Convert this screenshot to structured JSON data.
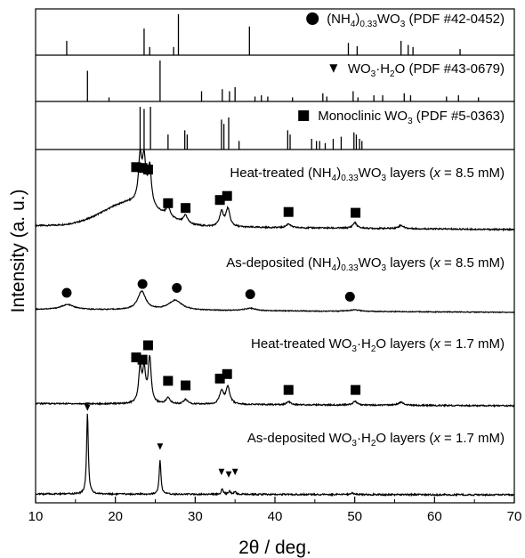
{
  "chart_data": {
    "type": "line",
    "xlabel": "2θ / deg.",
    "ylabel": "Intensity (a. u.)",
    "xlim": [
      10,
      70
    ],
    "xticks": [
      10,
      20,
      30,
      40,
      50,
      60,
      70
    ],
    "references": [
      {
        "label_parts": [
          "(NH",
          "4",
          ")",
          "0.33",
          "WO",
          "3",
          " (PDF #42-0452)"
        ],
        "label_subs": [
          false,
          true,
          false,
          true,
          false,
          true,
          false
        ],
        "marker": "circle",
        "peaks": [
          {
            "x": 13.9,
            "h": 0.35
          },
          {
            "x": 23.6,
            "h": 0.65
          },
          {
            "x": 24.3,
            "h": 0.2
          },
          {
            "x": 27.3,
            "h": 0.2
          },
          {
            "x": 27.9,
            "h": 1.0
          },
          {
            "x": 36.8,
            "h": 0.7
          },
          {
            "x": 49.2,
            "h": 0.3
          },
          {
            "x": 50.3,
            "h": 0.22
          },
          {
            "x": 55.8,
            "h": 0.35
          },
          {
            "x": 56.7,
            "h": 0.25
          },
          {
            "x": 57.3,
            "h": 0.2
          },
          {
            "x": 63.2,
            "h": 0.15
          }
        ]
      },
      {
        "label_parts": [
          "WO",
          "3",
          "·H",
          "2",
          "O (PDF #43-0679)"
        ],
        "label_subs": [
          false,
          true,
          false,
          true,
          false
        ],
        "marker": "triangle-down",
        "peaks": [
          {
            "x": 16.5,
            "h": 0.75
          },
          {
            "x": 19.2,
            "h": 0.1
          },
          {
            "x": 25.6,
            "h": 1.0
          },
          {
            "x": 30.8,
            "h": 0.25
          },
          {
            "x": 33.4,
            "h": 0.3
          },
          {
            "x": 34.3,
            "h": 0.25
          },
          {
            "x": 35.0,
            "h": 0.35
          },
          {
            "x": 37.5,
            "h": 0.12
          },
          {
            "x": 38.3,
            "h": 0.15
          },
          {
            "x": 39.1,
            "h": 0.12
          },
          {
            "x": 42.2,
            "h": 0.1
          },
          {
            "x": 46.0,
            "h": 0.2
          },
          {
            "x": 46.5,
            "h": 0.12
          },
          {
            "x": 49.8,
            "h": 0.25
          },
          {
            "x": 50.4,
            "h": 0.1
          },
          {
            "x": 52.4,
            "h": 0.15
          },
          {
            "x": 53.5,
            "h": 0.15
          },
          {
            "x": 56.2,
            "h": 0.2
          },
          {
            "x": 57.0,
            "h": 0.15
          },
          {
            "x": 61.5,
            "h": 0.12
          },
          {
            "x": 63.0,
            "h": 0.15
          },
          {
            "x": 65.5,
            "h": 0.1
          }
        ]
      },
      {
        "label_parts": [
          "Monoclinic WO",
          "3",
          " (PDF #5-0363)"
        ],
        "label_subs": [
          false,
          true,
          false
        ],
        "marker": "square",
        "peaks": [
          {
            "x": 23.1,
            "h": 1.0
          },
          {
            "x": 23.6,
            "h": 0.95
          },
          {
            "x": 24.4,
            "h": 1.0
          },
          {
            "x": 26.6,
            "h": 0.35
          },
          {
            "x": 28.7,
            "h": 0.45
          },
          {
            "x": 29.0,
            "h": 0.35
          },
          {
            "x": 33.3,
            "h": 0.7
          },
          {
            "x": 33.6,
            "h": 0.6
          },
          {
            "x": 34.2,
            "h": 0.75
          },
          {
            "x": 35.5,
            "h": 0.2
          },
          {
            "x": 41.6,
            "h": 0.45
          },
          {
            "x": 41.9,
            "h": 0.35
          },
          {
            "x": 44.6,
            "h": 0.25
          },
          {
            "x": 45.2,
            "h": 0.2
          },
          {
            "x": 45.6,
            "h": 0.2
          },
          {
            "x": 46.3,
            "h": 0.15
          },
          {
            "x": 47.3,
            "h": 0.25
          },
          {
            "x": 48.3,
            "h": 0.3
          },
          {
            "x": 49.9,
            "h": 0.4
          },
          {
            "x": 50.2,
            "h": 0.35
          },
          {
            "x": 50.6,
            "h": 0.25
          },
          {
            "x": 50.9,
            "h": 0.2
          }
        ]
      }
    ],
    "patterns": [
      {
        "label_parts": [
          "Heat-treated (NH",
          "4",
          ")",
          "0.33",
          "WO",
          "3",
          " layers (",
          "x",
          " = 8.5 mM)"
        ],
        "label_subs": [
          false,
          true,
          false,
          true,
          false,
          true,
          false,
          false,
          false
        ],
        "label_ital": [
          false,
          false,
          false,
          false,
          false,
          false,
          false,
          true,
          false
        ],
        "marker": "square",
        "bg_start": 0.05,
        "bg_end": 0.0,
        "humps": [
          {
            "x": 22.0,
            "h": 0.3,
            "w": 3.5
          }
        ],
        "peaks": [
          {
            "x": 23.1,
            "h": 0.55,
            "w": 0.25
          },
          {
            "x": 23.6,
            "h": 0.52,
            "w": 0.25
          },
          {
            "x": 24.3,
            "h": 0.48,
            "w": 0.25
          },
          {
            "x": 26.6,
            "h": 0.12,
            "w": 0.3
          },
          {
            "x": 28.8,
            "h": 0.1,
            "w": 0.3
          },
          {
            "x": 33.3,
            "h": 0.18,
            "w": 0.3
          },
          {
            "x": 34.1,
            "h": 0.22,
            "w": 0.3
          },
          {
            "x": 41.7,
            "h": 0.05,
            "w": 0.3
          },
          {
            "x": 50.0,
            "h": 0.07,
            "w": 0.3
          },
          {
            "x": 55.8,
            "h": 0.04,
            "w": 0.4
          }
        ],
        "markers_x": [
          22.6,
          23.4,
          24.1,
          26.6,
          28.8,
          33.1,
          34.0,
          41.7,
          50.1
        ],
        "markers_y": [
          0.78,
          0.77,
          0.75,
          0.33,
          0.27,
          0.37,
          0.42,
          0.22,
          0.21
        ]
      },
      {
        "label_parts": [
          "As-deposited (NH",
          "4",
          ")",
          "0.33",
          "WO",
          "3",
          " layers (",
          "x",
          " = 8.5 mM)"
        ],
        "label_subs": [
          false,
          true,
          false,
          true,
          false,
          true,
          false,
          false,
          false
        ],
        "label_ital": [
          false,
          false,
          false,
          false,
          false,
          false,
          false,
          true,
          false
        ],
        "marker": "circle",
        "bg_start": 0.06,
        "bg_end": 0.0,
        "humps": [],
        "peaks": [
          {
            "x": 14.0,
            "h": 0.1,
            "w": 1.0
          },
          {
            "x": 23.3,
            "h": 0.38,
            "w": 0.6
          },
          {
            "x": 27.5,
            "h": 0.2,
            "w": 1.0
          },
          {
            "x": 36.9,
            "h": 0.05,
            "w": 0.8
          },
          {
            "x": 50.0,
            "h": 0.03,
            "w": 0.8
          }
        ],
        "markers_x": [
          13.9,
          23.4,
          27.7,
          36.9,
          49.4
        ],
        "markers_y": [
          0.4,
          0.58,
          0.5,
          0.37,
          0.32
        ]
      },
      {
        "label_parts": [
          "Heat-treated WO",
          "3",
          "·H",
          "2",
          "O layers (",
          "x",
          " = 1.7 mM)"
        ],
        "label_subs": [
          false,
          true,
          false,
          true,
          false,
          false,
          false
        ],
        "label_ital": [
          false,
          false,
          false,
          false,
          false,
          true,
          false
        ],
        "marker": "square",
        "bg_start": 0.03,
        "bg_end": 0.0,
        "humps": [],
        "peaks": [
          {
            "x": 23.1,
            "h": 0.45,
            "w": 0.22
          },
          {
            "x": 23.6,
            "h": 0.42,
            "w": 0.22
          },
          {
            "x": 24.3,
            "h": 0.6,
            "w": 0.22
          },
          {
            "x": 26.6,
            "h": 0.08,
            "w": 0.3
          },
          {
            "x": 28.8,
            "h": 0.06,
            "w": 0.3
          },
          {
            "x": 33.3,
            "h": 0.17,
            "w": 0.3
          },
          {
            "x": 34.1,
            "h": 0.22,
            "w": 0.3
          },
          {
            "x": 41.7,
            "h": 0.04,
            "w": 0.3
          },
          {
            "x": 50.0,
            "h": 0.05,
            "w": 0.3
          },
          {
            "x": 55.8,
            "h": 0.04,
            "w": 0.4
          }
        ],
        "markers_x": [
          22.6,
          23.4,
          24.1,
          26.6,
          28.8,
          33.1,
          34.0,
          41.7,
          50.1
        ],
        "markers_y": [
          0.64,
          0.61,
          0.8,
          0.33,
          0.27,
          0.36,
          0.42,
          0.21,
          0.21
        ]
      },
      {
        "label_parts": [
          "As-deposited WO",
          "3",
          "·H",
          "2",
          "O layers (",
          "x",
          " = 1.7 mM)"
        ],
        "label_subs": [
          false,
          true,
          false,
          true,
          false,
          false,
          false
        ],
        "label_ital": [
          false,
          false,
          false,
          false,
          false,
          true,
          false
        ],
        "marker": "triangle-down",
        "bg_start": 0.01,
        "bg_end": 0.0,
        "humps": [],
        "peaks": [
          {
            "x": 16.5,
            "h": 0.95,
            "w": 0.13
          },
          {
            "x": 25.6,
            "h": 0.4,
            "w": 0.13
          },
          {
            "x": 33.4,
            "h": 0.06,
            "w": 0.15
          },
          {
            "x": 34.3,
            "h": 0.04,
            "w": 0.15
          },
          {
            "x": 35.0,
            "h": 0.03,
            "w": 0.15
          },
          {
            "x": 49.6,
            "h": 0.02,
            "w": 0.2
          }
        ],
        "markers_x": [
          16.5,
          25.6,
          33.3,
          34.2,
          35.0
        ],
        "markers_y": [
          1.03,
          0.57,
          0.27,
          0.24,
          0.27
        ]
      }
    ]
  }
}
